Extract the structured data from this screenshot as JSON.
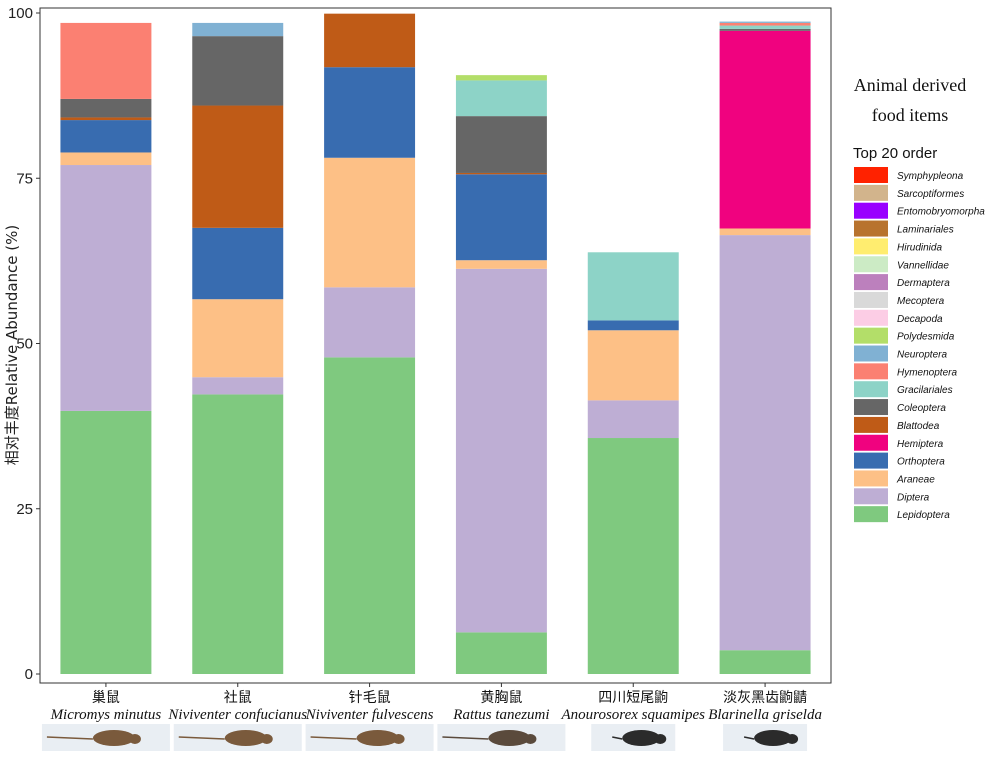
{
  "chart_data": {
    "type": "bar",
    "stacked": true,
    "ylabel": "相对丰度Relative Abundance (%)",
    "ylim": [
      0,
      100
    ],
    "yticks": [
      "0",
      "25",
      "50",
      "75",
      "100"
    ],
    "grid": false,
    "legend_title": "Animal derived food items",
    "legend_subtitle": "Top 20 order",
    "legend_placement": "right",
    "categories": [
      {
        "cn": "巢鼠",
        "latin": "Micromys minutus"
      },
      {
        "cn": "社鼠",
        "latin": "Niviventer confucianus"
      },
      {
        "cn": "针毛鼠",
        "latin": "Niviventer fulvescens"
      },
      {
        "cn": "黄胸鼠",
        "latin": "Rattus tanezumi"
      },
      {
        "cn": "四川短尾鼩",
        "latin": "Anourosorex squamipes"
      },
      {
        "cn": "淡灰黑齿鼩鼱",
        "latin": "Blarinella griselda"
      }
    ],
    "series": [
      {
        "name": "Lepidoptera",
        "color": "#7fc97f",
        "values": [
          39.8,
          42.3,
          47.9,
          6.3,
          35.7,
          3.6
        ]
      },
      {
        "name": "Diptera",
        "color": "#beaed4",
        "values": [
          37.2,
          2.6,
          10.6,
          55.0,
          5.7,
          62.8
        ]
      },
      {
        "name": "Araneae",
        "color": "#fdc086",
        "values": [
          1.9,
          11.8,
          19.6,
          1.3,
          10.6,
          1.0
        ]
      },
      {
        "name": "Orthoptera",
        "color": "#386cb0",
        "values": [
          4.9,
          10.8,
          13.7,
          13.0,
          1.5,
          0
        ]
      },
      {
        "name": "Hemiptera",
        "color": "#f0027f",
        "values": [
          0,
          0,
          0,
          0,
          0,
          29.9
        ]
      },
      {
        "name": "Blattodea",
        "color": "#bf5b17",
        "values": [
          0.4,
          18.5,
          8.1,
          0.2,
          0,
          0
        ]
      },
      {
        "name": "Coleoptera",
        "color": "#666666",
        "values": [
          2.8,
          10.5,
          0,
          8.6,
          0,
          0.3
        ]
      },
      {
        "name": "Gracilariales",
        "color": "#8dd3c7",
        "values": [
          0,
          0,
          0,
          5.4,
          10.3,
          0.5
        ]
      },
      {
        "name": "Hymenoptera",
        "color": "#fb8072",
        "values": [
          11.5,
          0,
          0,
          0,
          0,
          0.4
        ]
      },
      {
        "name": "Neuroptera",
        "color": "#80b1d3",
        "values": [
          0,
          2.0,
          0,
          0,
          0,
          0.2
        ]
      },
      {
        "name": "Polydesmida",
        "color": "#b3de69",
        "values": [
          0,
          0,
          0,
          0.8,
          0,
          0
        ]
      },
      {
        "name": "Decapoda",
        "color": "#fccde5",
        "values": [
          0,
          0,
          0,
          0,
          0,
          0
        ]
      },
      {
        "name": "Mecoptera",
        "color": "#d9d9d9",
        "values": [
          0,
          0,
          0,
          0,
          0,
          0
        ]
      },
      {
        "name": "Dermaptera",
        "color": "#bc80bd",
        "values": [
          0,
          0,
          0,
          0,
          0,
          0
        ]
      },
      {
        "name": "Vannellidae",
        "color": "#ccebc5",
        "values": [
          0,
          0,
          0,
          0,
          0,
          0
        ]
      },
      {
        "name": "Hirudinida",
        "color": "#ffed6f",
        "values": [
          0,
          0,
          0,
          0,
          0,
          0
        ]
      },
      {
        "name": "Laminariales",
        "color": "#b8732e",
        "values": [
          0,
          0,
          0,
          0,
          0,
          0
        ]
      },
      {
        "name": "Entomobryomorpha",
        "color": "#9900ff",
        "values": [
          0,
          0,
          0,
          0,
          0,
          0
        ]
      },
      {
        "name": "Sarcoptiformes",
        "color": "#d2b48c",
        "values": [
          0,
          0,
          0,
          0,
          0,
          0
        ]
      },
      {
        "name": "Symphypleona",
        "color": "#ff2200",
        "values": [
          0,
          0,
          0,
          0,
          0,
          0
        ]
      }
    ],
    "animal_photos": [
      "harvest-mouse-photo",
      "confucian-rat-photo",
      "chestnut-rat-photo",
      "tanezumi-rat-photo",
      "mole-shrew-photo",
      "short-tailed-shrew-photo"
    ]
  }
}
